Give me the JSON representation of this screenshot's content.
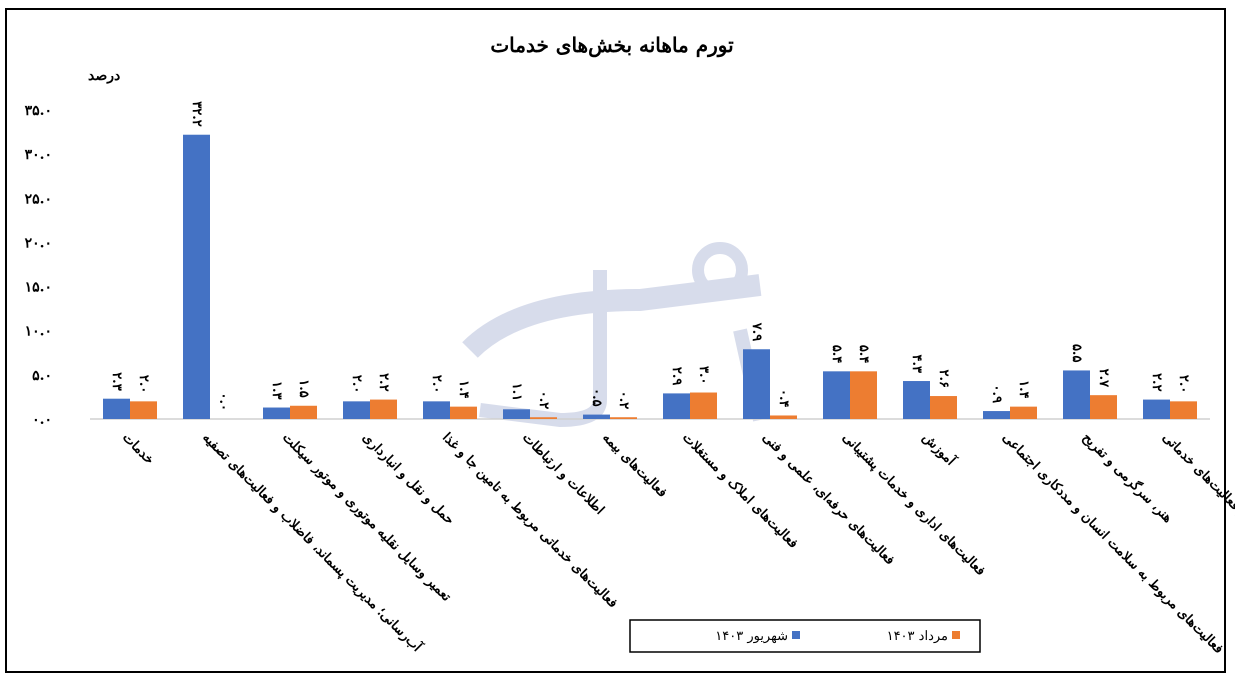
{
  "chart_data": {
    "type": "bar",
    "title": "تورم ماهانه بخش‌های خدمات",
    "ylabel": "درصد",
    "xlabel": "",
    "ylim": [
      0,
      35
    ],
    "yticks": [
      0,
      5,
      10,
      15,
      20,
      25,
      30,
      35
    ],
    "grid": false,
    "legend_position": "bottom",
    "categories": [
      "خدمات",
      "آب‌رسانی؛ مدیریت پسماند، فاضلاب و فعالیت‌های تصفیه",
      "تعمیر وسایل نقلیه موتوری و موتور سیکلت",
      "حمل و نقل و انبارداری",
      "فعالیت‌های خدماتی مربوط به تامین جا و غذا",
      "اطلاعات و ارتباطات",
      "فعالیت‌های بیمه",
      "فعالیت‌های املاک و مستغلات",
      "فعالیت‌های حرفه‌ای، علمی و فنی",
      "فعالیت‌های اداری و خدمات پشتیبانی",
      "آموزش",
      "فعالیت‌های مربوط به سلامت انسان و مددکاری اجتماعی",
      "هنر، سرگرمی و تفریح",
      "سایر فعالیت‌های خدماتی"
    ],
    "series": [
      {
        "name": "شهریور ۱۴۰۳",
        "color": "#4472C4",
        "values": [
          2.3,
          32.2,
          1.3,
          2.0,
          2.0,
          1.1,
          0.5,
          2.9,
          7.9,
          5.4,
          4.3,
          0.9,
          5.5,
          2.2
        ]
      },
      {
        "name": "مرداد ۱۴۰۳",
        "color": "#ED7D31",
        "values": [
          2.0,
          0.0,
          1.5,
          2.2,
          1.4,
          0.2,
          0.2,
          3.0,
          0.4,
          5.4,
          2.6,
          1.4,
          2.7,
          2.0
        ]
      }
    ],
    "watermark": "اقتصاد معاصر"
  }
}
